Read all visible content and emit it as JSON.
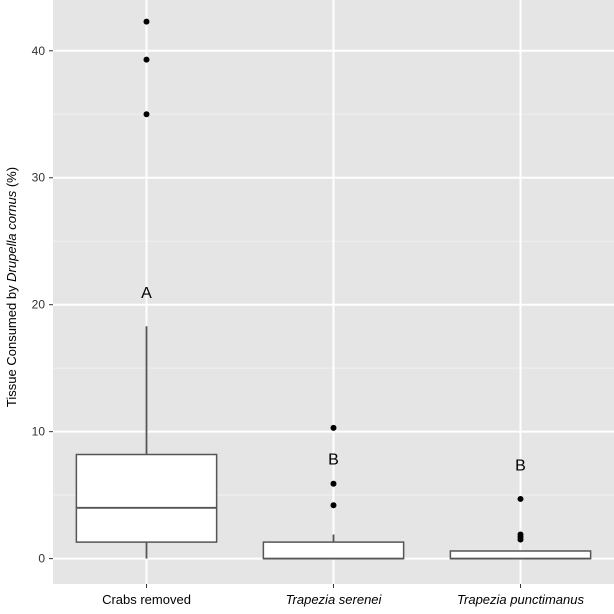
{
  "chart_data": {
    "type": "box",
    "ylabel_parts": [
      {
        "text": "Tissue Consumed by ",
        "italic": false
      },
      {
        "text": "Drupella cornus",
        "italic": true
      },
      {
        "text": " (%)",
        "italic": false
      }
    ],
    "categories": [
      {
        "label": "Crabs removed",
        "italic": false
      },
      {
        "label": "Trapezia serenei",
        "italic": true
      },
      {
        "label": "Trapezia punctimanus",
        "italic": true
      }
    ],
    "ylim": [
      -2,
      44
    ],
    "yticks": [
      0,
      10,
      20,
      30,
      40
    ],
    "grid": true,
    "boxes": [
      {
        "whisker_low": 0,
        "q1": 1.3,
        "median": 4.0,
        "q3": 8.2,
        "whisker_high": 18.3,
        "outliers": [
          35.0,
          39.3,
          42.3
        ],
        "letter": "A",
        "letter_y": 21.0
      },
      {
        "whisker_low": 0,
        "q1": 0,
        "median": 0,
        "q3": 1.3,
        "whisker_high": 1.9,
        "outliers": [
          4.2,
          5.9,
          10.3
        ],
        "letter": "B",
        "letter_y": 7.9
      },
      {
        "whisker_low": 0,
        "q1": 0,
        "median": 0,
        "q3": 0.6,
        "whisker_high": 0.6,
        "outliers": [
          1.5,
          1.7,
          1.9,
          4.7
        ],
        "letter": "B",
        "letter_y": 7.4
      }
    ],
    "colors": {
      "panel": "#e5e5e5",
      "grid_major": "#ffffff",
      "grid_minor": "#f0f0f0",
      "box_fill": "#ffffff",
      "box_stroke": "#555555",
      "outlier": "#000000",
      "text": "#000000",
      "tick_text": "#333333"
    }
  }
}
